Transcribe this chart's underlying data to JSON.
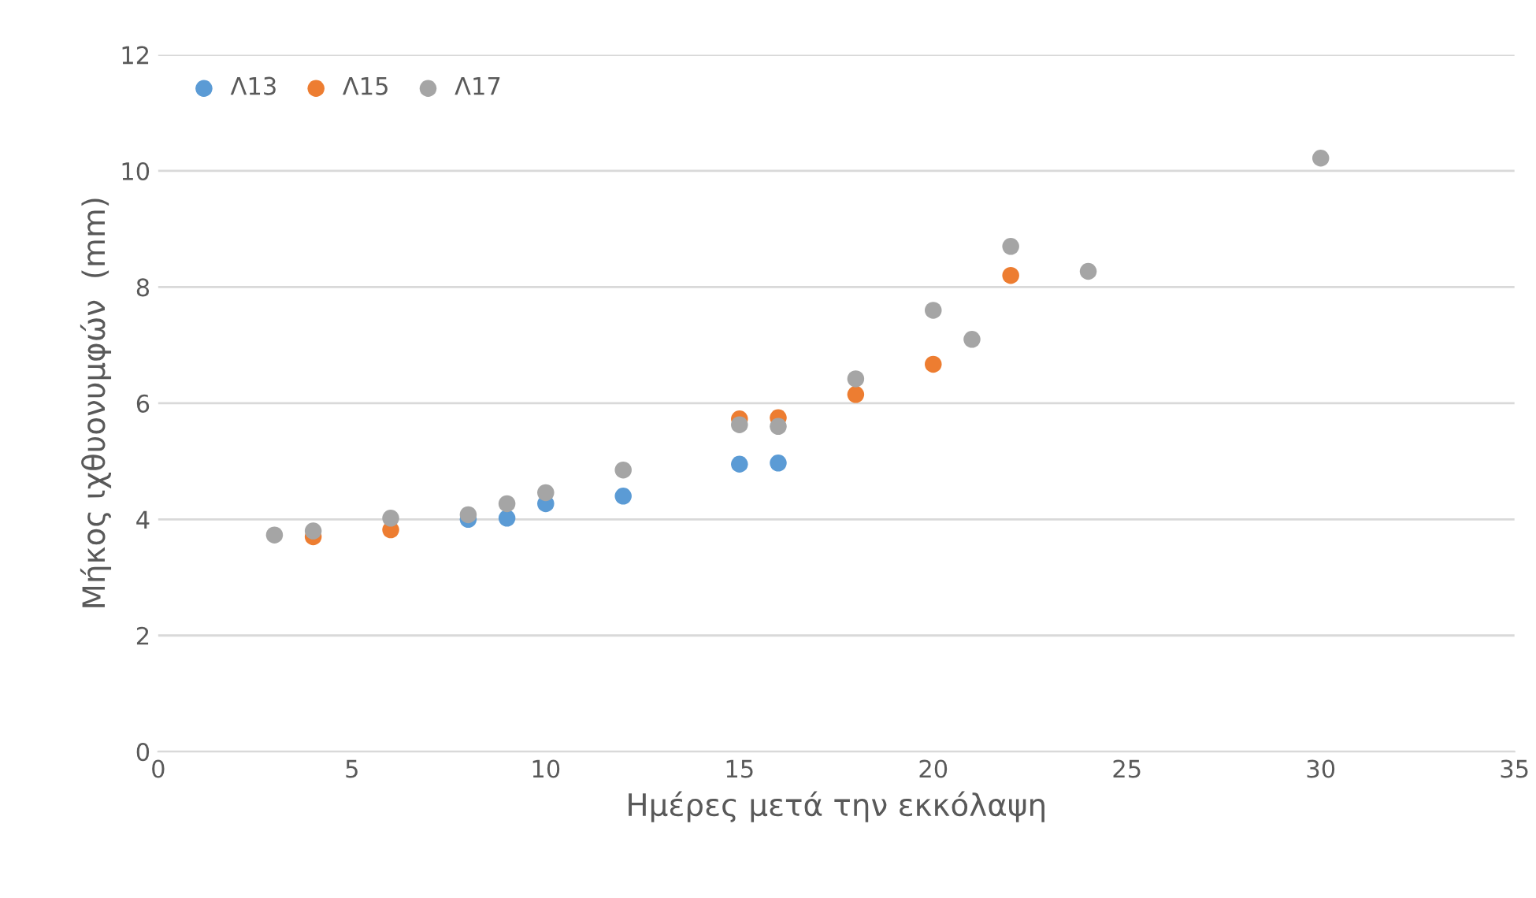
{
  "chart_data": {
    "type": "scatter",
    "xlabel": "Ημέρες μετά την εκκόλαψη",
    "ylabel": "Μήκος ιχθυονυμφών  (mm)",
    "xlim": [
      0,
      35
    ],
    "xticks": [
      0,
      5,
      10,
      15,
      20,
      25,
      30,
      35
    ],
    "ylim": [
      0,
      12
    ],
    "yticks": [
      0,
      2,
      4,
      6,
      8,
      10,
      12
    ],
    "grid": "y",
    "legend": "top left",
    "marker": "circle",
    "series": [
      {
        "name": "Λ13",
        "color": "#5b9bd5",
        "x": [
          8,
          9,
          10,
          12,
          15,
          16
        ],
        "values": [
          4.0,
          4.02,
          4.27,
          4.4,
          4.95,
          4.97
        ]
      },
      {
        "name": "Λ15",
        "color": "#ed7d31",
        "x": [
          4,
          6,
          15,
          16,
          18,
          20,
          22
        ],
        "values": [
          3.7,
          3.82,
          5.73,
          5.75,
          6.15,
          6.67,
          8.2
        ]
      },
      {
        "name": "Λ17",
        "color": "#a5a5a5",
        "x": [
          3,
          4,
          6,
          8,
          9,
          10,
          12,
          15,
          16,
          18,
          20,
          21,
          22,
          24,
          30
        ],
        "values": [
          3.73,
          3.8,
          4.02,
          4.08,
          4.27,
          4.46,
          4.85,
          5.63,
          5.6,
          6.42,
          7.6,
          7.1,
          8.7,
          8.27,
          10.22
        ]
      }
    ]
  }
}
